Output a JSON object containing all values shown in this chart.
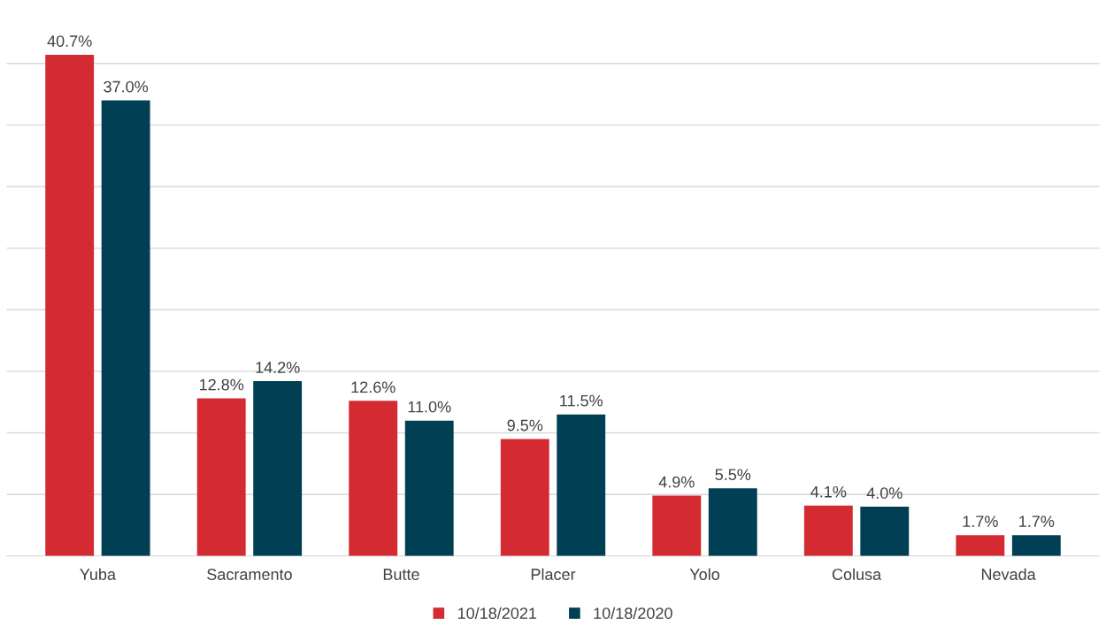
{
  "chart_data": {
    "type": "bar",
    "categories": [
      "Yuba",
      "Sacramento",
      "Butte",
      "Placer",
      "Yolo",
      "Colusa",
      "Nevada"
    ],
    "series": [
      {
        "name": "10/18/2021",
        "color": "#d42a32",
        "values": [
          40.7,
          12.8,
          12.6,
          9.5,
          4.9,
          4.1,
          1.7
        ],
        "value_labels": [
          "40.7%",
          "12.8%",
          "12.6%",
          "9.5%",
          "4.9%",
          "4.1%",
          "1.7%"
        ]
      },
      {
        "name": "10/18/2020",
        "color": "#003f54",
        "values": [
          37.0,
          14.2,
          11.0,
          11.5,
          5.5,
          4.0,
          1.7
        ],
        "value_labels": [
          "37.0%",
          "14.2%",
          "11.0%",
          "11.5%",
          "5.5%",
          "4.0%",
          "1.7%"
        ]
      }
    ],
    "yticks": [
      {
        "value": 0,
        "label": null
      },
      {
        "value": 5,
        "label": null
      },
      {
        "value": 10,
        "label": null
      },
      {
        "value": 15,
        "label": null
      },
      {
        "value": 20,
        "label": null
      },
      {
        "value": 25,
        "label": null
      },
      {
        "value": 30,
        "label": null
      },
      {
        "value": 35,
        "label": null
      },
      {
        "value": 40,
        "label": null
      }
    ],
    "grid": "y",
    "legend": "bottom",
    "tick_labels": "x"
  }
}
